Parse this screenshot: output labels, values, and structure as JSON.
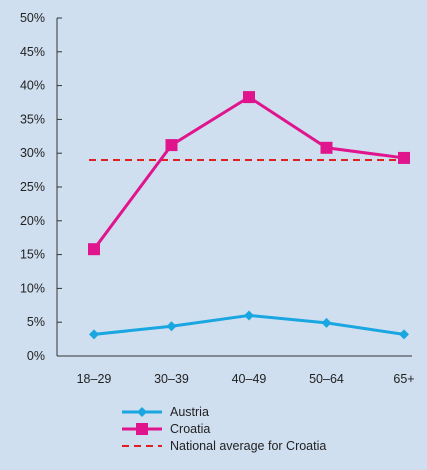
{
  "chart_data": {
    "type": "line",
    "categories": [
      "18–29",
      "30–39",
      "40–49",
      "50–64",
      "65+"
    ],
    "y_ticks": [
      "0%",
      "5%",
      "10%",
      "15%",
      "20%",
      "25%",
      "30%",
      "35%",
      "40%",
      "45%",
      "50%"
    ],
    "ylim": [
      0,
      50
    ],
    "grid": false,
    "legend_position": "bottom",
    "series": [
      {
        "name": "Austria",
        "values": [
          3.2,
          4.4,
          6.0,
          4.9,
          3.2
        ],
        "color": "#1aa6e0",
        "marker": "diamond"
      },
      {
        "name": "Croatia",
        "values": [
          15.8,
          31.2,
          38.3,
          30.8,
          29.3
        ],
        "color": "#e0148c",
        "marker": "square"
      }
    ],
    "reference_line": {
      "name": "National average for Croatia",
      "value": 29.0,
      "color": "#e02020",
      "style": "dashed"
    }
  }
}
